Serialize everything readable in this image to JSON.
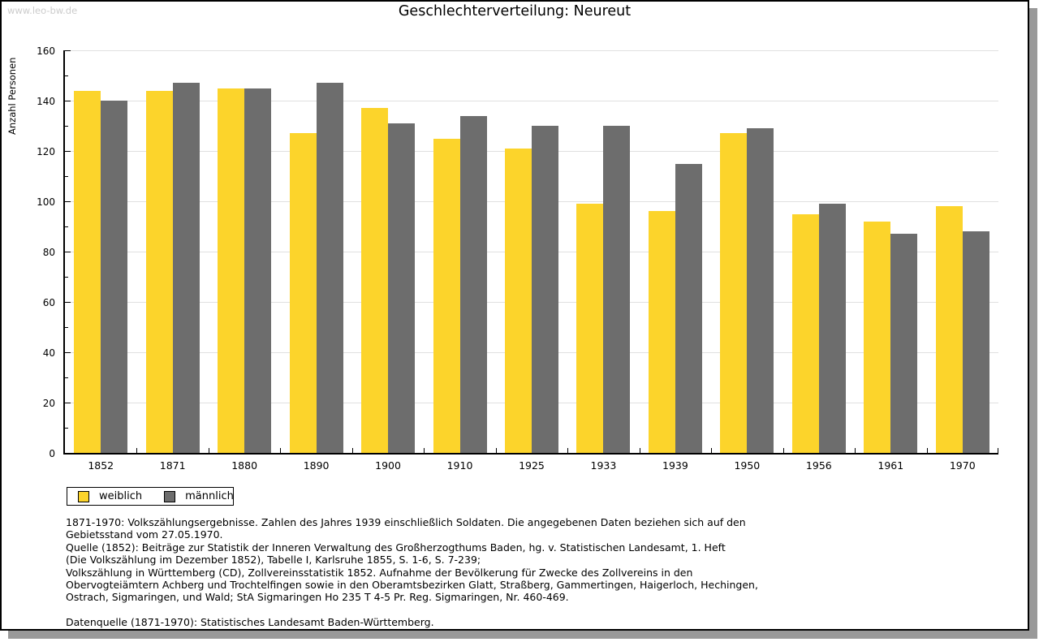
{
  "watermark": "www.leo-bw.de",
  "title": "Geschlechterverteilung: Neureut",
  "chart_data": {
    "type": "bar",
    "title": "Geschlechterverteilung: Neureut",
    "categories": [
      "1852",
      "1871",
      "1880",
      "1890",
      "1900",
      "1910",
      "1925",
      "1933",
      "1939",
      "1950",
      "1956",
      "1961",
      "1970"
    ],
    "series": [
      {
        "name": "weiblich",
        "color": "#fcd42b",
        "values": [
          144,
          144,
          145,
          127,
          137,
          125,
          121,
          99,
          96,
          127,
          95,
          92,
          98
        ]
      },
      {
        "name": "männlich",
        "color": "#6d6d6d",
        "values": [
          140,
          147,
          145,
          147,
          131,
          134,
          130,
          130,
          115,
          129,
          99,
          87,
          88
        ]
      }
    ],
    "xlabel": "",
    "ylabel": "Anzahl Personen",
    "ylim": [
      0,
      160
    ],
    "ytick_major_step": 20,
    "ytick_minor_step": 10,
    "grid": true,
    "gridline_color": "#e0e0e0",
    "legend_position": "bottom-left"
  },
  "legend": {
    "items": [
      {
        "label": "weiblich",
        "color": "#fcd42b"
      },
      {
        "label": "männlich",
        "color": "#6d6d6d"
      }
    ]
  },
  "footnotes": {
    "lines": [
      "1871-1970: Volkszählungsergebnisse. Zahlen des Jahres 1939 einschließlich Soldaten. Die angegebenen Daten beziehen sich auf den",
      "Gebietsstand vom 27.05.1970.",
      "Quelle (1852): Beiträge zur Statistik der Inneren Verwaltung des Großherzogthums Baden, hg. v. Statistischen Landesamt, 1. Heft",
      "(Die Volkszählung im Dezember 1852), Tabelle I, Karlsruhe 1855, S. 1-6, S. 7-239;",
      "Volkszählung in Württemberg (CD), Zollvereinsstatistik 1852. Aufnahme der Bevölkerung für Zwecke des Zollvereins in den",
      "Obervogteiämtern Achberg und Trochtelfingen sowie in den Oberamtsbezirken Glatt, Straßberg, Gammertingen, Haigerloch, Hechingen,",
      "Ostrach, Sigmaringen, und Wald; StA Sigmaringen Ho 235 T 4-5 Pr. Reg. Sigmaringen, Nr. 460-469.",
      "",
      "Datenquelle (1871-1970): Statistisches Landesamt Baden-Württemberg."
    ]
  }
}
